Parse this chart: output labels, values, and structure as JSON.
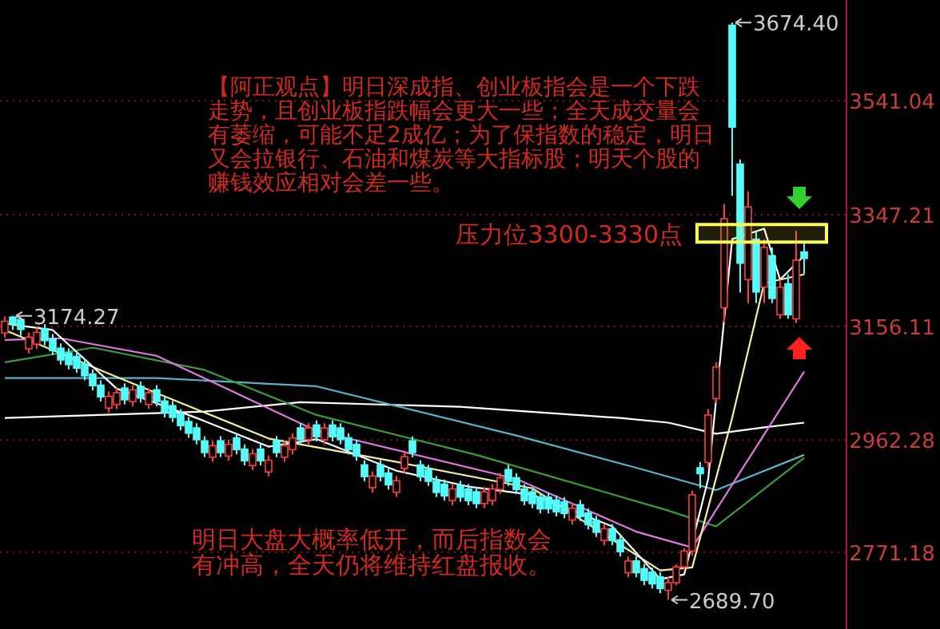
{
  "chart_data": {
    "type": "candlestick",
    "categories": [
      null,
      null,
      null,
      null,
      null,
      null,
      null,
      null,
      null,
      null,
      null,
      null,
      null,
      null,
      null,
      null,
      null,
      null,
      null,
      null,
      null,
      null,
      null,
      null,
      null,
      null,
      null,
      null,
      null,
      null,
      null,
      null,
      null,
      null,
      null,
      null,
      null,
      null,
      null,
      null,
      null,
      null,
      null,
      null,
      null,
      null,
      null,
      null,
      null,
      null,
      null,
      null,
      null,
      null,
      null,
      null,
      null,
      null,
      null,
      null,
      null,
      null,
      null,
      null,
      null,
      null,
      null,
      null,
      null,
      null,
      null,
      null,
      null,
      null,
      null,
      null,
      null,
      null,
      null,
      null,
      null,
      null,
      null,
      null,
      null,
      null,
      null,
      null,
      null,
      null,
      null,
      null,
      null,
      null,
      null,
      null,
      null,
      null,
      null,
      null,
      null
    ],
    "ohlc": [
      [
        3145,
        3173,
        3137,
        3165
      ],
      [
        3172,
        3174.27,
        3150,
        3160
      ],
      [
        3168,
        3172,
        3140,
        3151
      ],
      [
        3118,
        3146,
        3110,
        3138
      ],
      [
        3126,
        3154,
        3118,
        3146
      ],
      [
        3152,
        3160,
        3124,
        3132
      ],
      [
        3135,
        3143,
        3107,
        3115
      ],
      [
        3119,
        3127,
        3091,
        3099
      ],
      [
        3111,
        3119,
        3083,
        3091
      ],
      [
        3105,
        3113,
        3077,
        3085
      ],
      [
        3092,
        3100,
        3064,
        3072
      ],
      [
        3075,
        3083,
        3047,
        3055
      ],
      [
        3056,
        3064,
        3028,
        3036
      ],
      [
        3017,
        3045,
        3009,
        3037
      ],
      [
        3023,
        3051,
        3015,
        3043
      ],
      [
        3051,
        3059,
        3023,
        3031
      ],
      [
        3028,
        3056,
        3020,
        3048
      ],
      [
        3054,
        3062,
        3026,
        3034
      ],
      [
        3023,
        3051,
        3015,
        3043
      ],
      [
        3048,
        3056,
        3020,
        3028
      ],
      [
        3029,
        3037,
        3001,
        3009
      ],
      [
        3021,
        3029,
        2993,
        3001
      ],
      [
        3007,
        3015,
        2979,
        2987
      ],
      [
        2994,
        3002,
        2966,
        2974
      ],
      [
        2983,
        2991,
        2955,
        2963
      ],
      [
        2961,
        2969,
        2933,
        2941
      ],
      [
        2933,
        2961,
        2925,
        2953
      ],
      [
        2961,
        2969,
        2933,
        2941
      ],
      [
        2935,
        2963,
        2927,
        2955
      ],
      [
        2966,
        2974,
        2938,
        2946
      ],
      [
        2947,
        2955,
        2919,
        2927
      ],
      [
        2919,
        2947,
        2911,
        2939
      ],
      [
        2947,
        2955,
        2919,
        2927
      ],
      [
        2908,
        2936,
        2900,
        2928
      ],
      [
        2961,
        2969,
        2933,
        2941
      ],
      [
        2933,
        2961,
        2925,
        2953
      ],
      [
        2946,
        2974,
        2938,
        2966
      ],
      [
        2983,
        2991,
        2955,
        2963
      ],
      [
        2963,
        2991,
        2955,
        2983
      ],
      [
        2988,
        2996,
        2960,
        2968
      ],
      [
        2963,
        2991,
        2955,
        2983
      ],
      [
        2988,
        2996,
        2960,
        2968
      ],
      [
        2983,
        2991,
        2955,
        2963
      ],
      [
        2966,
        2974,
        2938,
        2946
      ],
      [
        2955,
        2963,
        2927,
        2935
      ],
      [
        2920,
        2928,
        2892,
        2900
      ],
      [
        2881,
        2909,
        2873,
        2901
      ],
      [
        2920,
        2928,
        2892,
        2900
      ],
      [
        2906,
        2914,
        2878,
        2886
      ],
      [
        2873,
        2901,
        2865,
        2893
      ],
      [
        2914,
        2942,
        2906,
        2934
      ],
      [
        2961,
        2969,
        2933,
        2941
      ],
      [
        2920,
        2928,
        2892,
        2900
      ],
      [
        2912,
        2920,
        2884,
        2892
      ],
      [
        2893,
        2901,
        2865,
        2873
      ],
      [
        2887,
        2895,
        2859,
        2867
      ],
      [
        2859,
        2887,
        2851,
        2879
      ],
      [
        2885,
        2893,
        2857,
        2865
      ],
      [
        2879,
        2887,
        2851,
        2859
      ],
      [
        2874,
        2882,
        2846,
        2854
      ],
      [
        2854,
        2882,
        2846,
        2874
      ],
      [
        2859,
        2887,
        2851,
        2879
      ],
      [
        2878,
        2906,
        2870,
        2898
      ],
      [
        2912,
        2920,
        2884,
        2892
      ],
      [
        2898,
        2906,
        2870,
        2878
      ],
      [
        2879,
        2887,
        2851,
        2859
      ],
      [
        2874,
        2882,
        2846,
        2854
      ],
      [
        2865,
        2873,
        2837,
        2845
      ],
      [
        2865,
        2873,
        2837,
        2845
      ],
      [
        2860,
        2868,
        2832,
        2840
      ],
      [
        2857,
        2865,
        2829,
        2837
      ],
      [
        2826,
        2854,
        2818,
        2846
      ],
      [
        2852,
        2860,
        2824,
        2832
      ],
      [
        2838,
        2846,
        2810,
        2818
      ],
      [
        2825,
        2833,
        2797,
        2805
      ],
      [
        2791,
        2819,
        2783,
        2811
      ],
      [
        2811,
        2819,
        2783,
        2791
      ],
      [
        2792,
        2800,
        2764,
        2772
      ],
      [
        2736,
        2764,
        2728,
        2756
      ],
      [
        2756,
        2764,
        2728,
        2736
      ],
      [
        2743,
        2751,
        2715,
        2723
      ],
      [
        2737,
        2745,
        2709,
        2717
      ],
      [
        2729,
        2737,
        2701,
        2709
      ],
      [
        2706,
        2730,
        2689.7,
        2719
      ],
      [
        2719,
        2750,
        2715,
        2746
      ],
      [
        2746,
        2778,
        2740,
        2773
      ],
      [
        2773,
        2876,
        2765,
        2869
      ],
      [
        2915,
        2925,
        2880,
        2905
      ],
      [
        2924,
        3015,
        2915,
        3005
      ],
      [
        3033,
        3095,
        3025,
        3087
      ],
      [
        3188,
        3365,
        3163,
        3340
      ],
      [
        3670,
        3674.4,
        3379,
        3496
      ],
      [
        3433,
        3441,
        3214,
        3264
      ],
      [
        3236,
        3387,
        3196,
        3360
      ],
      [
        3305,
        3319,
        3196,
        3215
      ],
      [
        3223,
        3305,
        3196,
        3291
      ],
      [
        3277,
        3291,
        3196,
        3204
      ],
      [
        3176,
        3236,
        3169,
        3223
      ],
      [
        3229,
        3245,
        3169,
        3176
      ],
      [
        3169,
        3319,
        3162,
        3269
      ],
      [
        3283,
        3299,
        3245,
        3272
      ]
    ],
    "series": [
      {
        "type": "line",
        "color": "#ffffff",
        "values": [
          3000,
          null,
          null,
          null,
          null,
          null,
          null,
          null,
          null,
          null,
          null,
          null,
          null,
          null,
          null,
          null,
          null,
          null,
          null,
          null,
          null,
          null,
          null,
          null,
          null,
          3011,
          null,
          null,
          null,
          null,
          null,
          null,
          null,
          null,
          null,
          null,
          null,
          3027,
          null,
          null,
          null,
          null,
          null,
          null,
          null,
          null,
          null,
          null,
          null,
          null,
          null,
          null,
          null,
          null,
          null,
          null,
          null,
          3019,
          null,
          null,
          null,
          null,
          null,
          null,
          null,
          null,
          null,
          null,
          null,
          null,
          null,
          null,
          null,
          null,
          null,
          null,
          null,
          3000,
          null,
          null,
          null,
          null,
          null,
          2992,
          null,
          null,
          null,
          null,
          null,
          2973,
          null,
          null,
          null,
          null,
          null,
          2984,
          null,
          null,
          null,
          null,
          2992
        ]
      },
      {
        "type": "line",
        "color": "#5ab4c8",
        "values": [
          3068,
          null,
          null,
          null,
          null,
          null,
          null,
          null,
          null,
          null,
          null,
          null,
          null,
          null,
          null,
          null,
          null,
          null,
          null,
          3068,
          null,
          null,
          null,
          null,
          null,
          null,
          null,
          null,
          null,
          null,
          null,
          null,
          null,
          null,
          null,
          null,
          null,
          null,
          null,
          3054,
          null,
          null,
          null,
          null,
          null,
          null,
          null,
          null,
          null,
          null,
          null,
          null,
          null,
          null,
          null,
          null,
          null,
          null,
          null,
          null,
          null,
          null,
          null,
          null,
          2970,
          null,
          null,
          null,
          null,
          null,
          null,
          null,
          null,
          null,
          null,
          null,
          null,
          null,
          null,
          2915,
          null,
          null,
          null,
          null,
          null,
          null,
          null,
          null,
          null,
          2877,
          null,
          null,
          null,
          null,
          null,
          null,
          null,
          null,
          null,
          null,
          2937
        ]
      },
      {
        "type": "line",
        "color": "#3c9c3c",
        "values": [
          3095,
          null,
          null,
          null,
          null,
          null,
          null,
          null,
          null,
          null,
          null,
          3120,
          null,
          null,
          null,
          null,
          null,
          null,
          null,
          null,
          null,
          null,
          null,
          null,
          null,
          3082,
          null,
          null,
          null,
          null,
          null,
          null,
          null,
          null,
          null,
          null,
          null,
          null,
          null,
          3005,
          null,
          null,
          null,
          null,
          null,
          null,
          null,
          null,
          null,
          null,
          null,
          null,
          null,
          null,
          null,
          null,
          null,
          null,
          null,
          2937,
          null,
          null,
          null,
          null,
          null,
          null,
          null,
          null,
          null,
          null,
          null,
          null,
          null,
          null,
          null,
          null,
          null,
          null,
          null,
          null,
          null,
          null,
          null,
          2842,
          null,
          null,
          null,
          null,
          null,
          2815,
          null,
          null,
          null,
          null,
          null,
          null,
          null,
          null,
          null,
          null,
          2932
        ]
      },
      {
        "type": "line",
        "color": "#e078e0",
        "values": [
          3133,
          null,
          null,
          null,
          null,
          null,
          null,
          3136,
          null,
          null,
          null,
          null,
          null,
          null,
          null,
          null,
          null,
          null,
          null,
          3106,
          null,
          null,
          null,
          null,
          null,
          null,
          null,
          null,
          null,
          null,
          null,
          null,
          null,
          null,
          null,
          null,
          null,
          null,
          null,
          2978,
          null,
          null,
          null,
          null,
          null,
          null,
          null,
          null,
          null,
          null,
          null,
          null,
          null,
          null,
          null,
          null,
          null,
          null,
          null,
          null,
          null,
          null,
          null,
          null,
          2896,
          null,
          null,
          null,
          null,
          null,
          null,
          null,
          null,
          null,
          null,
          null,
          null,
          null,
          null,
          2806,
          null,
          null,
          null,
          null,
          null,
          null,
          2779,
          null,
          null,
          null,
          null,
          null,
          null,
          null,
          null,
          null,
          null,
          null,
          null,
          null,
          3079
        ]
      },
      {
        "type": "line",
        "color": "#f0f0a0",
        "values": [
          3150,
          null,
          null,
          null,
          null,
          null,
          null,
          null,
          null,
          null,
          null,
          null,
          null,
          null,
          3070,
          null,
          null,
          null,
          null,
          null,
          null,
          null,
          null,
          null,
          null,
          null,
          null,
          null,
          null,
          null,
          null,
          null,
          null,
          2965,
          null,
          null,
          null,
          null,
          null,
          null,
          null,
          null,
          null,
          null,
          null,
          null,
          null,
          null,
          null,
          2925,
          null,
          null,
          null,
          null,
          null,
          null,
          null,
          null,
          null,
          null,
          null,
          null,
          null,
          null,
          null,
          null,
          2880,
          null,
          null,
          null,
          null,
          null,
          null,
          null,
          null,
          null,
          null,
          null,
          null,
          null,
          null,
          null,
          2740,
          null,
          null,
          null,
          2745,
          null,
          null,
          null,
          null,
          3000,
          null,
          null,
          null,
          3230,
          null,
          null,
          null,
          null,
          3245
        ]
      },
      {
        "type": "line",
        "color": "#ffffff",
        "values": [
          3161,
          null,
          null,
          null,
          null,
          null,
          3150,
          null,
          null,
          null,
          null,
          null,
          null,
          null,
          3050,
          null,
          null,
          null,
          null,
          null,
          null,
          null,
          null,
          null,
          3000,
          null,
          null,
          null,
          null,
          null,
          null,
          null,
          null,
          2951,
          null,
          null,
          null,
          null,
          null,
          2964,
          null,
          null,
          null,
          null,
          null,
          null,
          null,
          null,
          null,
          2910,
          null,
          null,
          null,
          null,
          null,
          null,
          null,
          null,
          2883,
          null,
          null,
          null,
          null,
          null,
          null,
          null,
          2869,
          null,
          null,
          null,
          null,
          null,
          null,
          null,
          null,
          null,
          2815,
          null,
          null,
          null,
          null,
          null,
          2725,
          null,
          null,
          2733,
          null,
          null,
          2896,
          null,
          null,
          3305,
          null,
          null,
          null,
          3323,
          null,
          3236,
          null,
          null,
          3277
        ]
      }
    ],
    "ylim": [
      2640,
      3713
    ],
    "yticks": [
      2771.18,
      2962.28,
      3156.11,
      3347.21,
      3541.04
    ],
    "grid": "y",
    "tick_labels": "y",
    "bands": [
      {
        "axis": "y",
        "from": 3300,
        "to": 3330,
        "label": "压力位3300-3330点",
        "color": "#ffff50"
      }
    ],
    "annotations": [
      "【阿正观点】明日深成指、创业板指会是一个下跌走势，且创业板指跌幅会更大一些；全天成交量会有萎缩，可能不足2成亿；为了保指数的稳定，明日又会拉银行、石油和煤炭等大指标股；明天个股的赚钱效应相对会差一些。",
      "明日大盘大概率低开，而后指数会有冲高，全天仍将维持红盘报收。",
      "3674.40",
      "3174.27",
      "2689.70"
    ]
  }
}
